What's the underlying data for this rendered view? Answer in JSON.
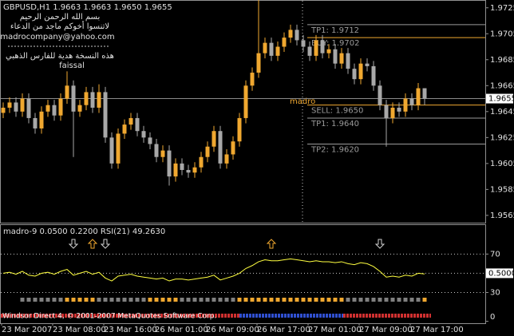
{
  "chart_data": {
    "type": "candlestick",
    "title": "GBPUSD,H1  1.9663 1.9663 1.9650 1.9655",
    "notes": [
      "بسم الله الرحمن الرحيم",
      "لاتنسوا أخوكم ماجد من الدعاء",
      "madrocompany@yahoo.com",
      "هذه النسخة هدية للفارس الذهبي",
      "faissal"
    ],
    "marker": "madro",
    "categories": [
      "23 Mar 2007",
      null,
      null,
      null,
      null,
      null,
      null,
      null,
      "23 Mar 08:00",
      null,
      null,
      null,
      null,
      null,
      null,
      null,
      "23 Mar 16:00",
      null,
      null,
      null,
      null,
      null,
      null,
      null,
      "26 Mar 01:00",
      null,
      null,
      null,
      null,
      null,
      null,
      null,
      "26 Mar 09:00",
      null,
      null,
      null,
      null,
      null,
      null,
      null,
      "26 Mar 17:00",
      null,
      null,
      null,
      null,
      null,
      null,
      null,
      "27 Mar 01:00",
      null,
      null,
      null,
      null,
      null,
      null,
      null,
      "27 Mar 09:00",
      null,
      null,
      null,
      null,
      null,
      null,
      null,
      "27 Mar 17:00",
      null,
      null
    ],
    "open": [
      1.9644,
      1.9648,
      1.9652,
      1.9645,
      1.9655,
      1.964,
      1.9632,
      1.9645,
      1.965,
      1.9642,
      1.9655,
      1.9665,
      1.9645,
      1.965,
      1.966,
      1.9648,
      1.966,
      1.9625,
      1.9605,
      1.9628,
      1.9635,
      1.964,
      1.963,
      1.9625,
      1.962,
      1.961,
      1.9615,
      1.9595,
      1.9605,
      1.96,
      1.9598,
      1.9602,
      1.961,
      1.9618,
      1.963,
      1.9605,
      1.9612,
      1.9622,
      1.964,
      1.9665,
      1.9675,
      1.969,
      1.9698,
      1.9688,
      1.9695,
      1.9702,
      1.9708,
      1.97,
      1.9695,
      1.9688,
      1.97,
      1.969,
      1.9693,
      1.9682,
      1.969,
      1.9678,
      1.967,
      1.9682,
      1.968,
      1.9665,
      1.965,
      1.964,
      1.9648,
      1.9645,
      1.9655,
      1.965,
      1.9663
    ],
    "high": [
      1.9652,
      1.9656,
      1.9656,
      1.9659,
      1.9659,
      1.9644,
      1.9649,
      1.9654,
      1.9654,
      1.9659,
      1.9676,
      1.9669,
      1.9654,
      1.9664,
      1.9664,
      1.9666,
      1.9664,
      1.9629,
      1.9632,
      1.9639,
      1.9644,
      1.9644,
      1.9634,
      1.9629,
      1.9624,
      1.9619,
      1.9619,
      1.9609,
      1.9609,
      1.9604,
      1.9606,
      1.9614,
      1.9622,
      1.9634,
      1.9634,
      1.9616,
      1.9626,
      1.9644,
      1.9669,
      1.9679,
      1.9735,
      1.9702,
      1.9702,
      1.9699,
      1.9706,
      1.9712,
      1.9712,
      1.9704,
      1.9699,
      1.9704,
      1.9704,
      1.9697,
      1.9697,
      1.9694,
      1.9694,
      1.9682,
      1.9686,
      1.9686,
      1.9684,
      1.9669,
      1.9654,
      1.9652,
      1.9652,
      1.9659,
      1.9659,
      1.9667,
      1.9663
    ],
    "low": [
      1.964,
      1.9644,
      1.9641,
      1.9641,
      1.9636,
      1.9628,
      1.9628,
      1.9641,
      1.9638,
      1.9638,
      1.9651,
      1.961,
      1.9641,
      1.9646,
      1.9644,
      1.9644,
      1.9621,
      1.9601,
      1.9601,
      1.9624,
      1.9631,
      1.9626,
      1.9621,
      1.9616,
      1.9606,
      1.9606,
      1.9588,
      1.9591,
      1.9596,
      1.9594,
      1.9594,
      1.9598,
      1.9606,
      1.9614,
      1.9601,
      1.9601,
      1.9608,
      1.9618,
      1.9636,
      1.9661,
      1.9671,
      1.9686,
      1.9684,
      1.9684,
      1.9691,
      1.9698,
      1.9696,
      1.9691,
      1.9684,
      1.9684,
      1.9686,
      1.9686,
      1.9678,
      1.9678,
      1.9674,
      1.9666,
      1.9666,
      1.9676,
      1.9661,
      1.9646,
      1.9618,
      1.9636,
      1.9641,
      1.9641,
      1.9646,
      1.9646,
      1.965
    ],
    "close": [
      1.9648,
      1.9652,
      1.9645,
      1.9655,
      1.964,
      1.9632,
      1.9645,
      1.965,
      1.9642,
      1.9655,
      1.9665,
      1.9645,
      1.965,
      1.966,
      1.9648,
      1.966,
      1.9625,
      1.9605,
      1.9628,
      1.9635,
      1.964,
      1.963,
      1.9625,
      1.962,
      1.961,
      1.9615,
      1.9595,
      1.9605,
      1.96,
      1.9598,
      1.9602,
      1.961,
      1.9618,
      1.963,
      1.9605,
      1.9612,
      1.9622,
      1.964,
      1.9665,
      1.9675,
      1.969,
      1.9698,
      1.9688,
      1.9695,
      1.9702,
      1.9708,
      1.97,
      1.9695,
      1.9688,
      1.97,
      1.969,
      1.9693,
      1.9682,
      1.969,
      1.9678,
      1.967,
      1.9682,
      1.968,
      1.9665,
      1.965,
      1.964,
      1.9648,
      1.9645,
      1.9655,
      1.965,
      1.9663,
      1.9655
    ],
    "up_color": "#f0a830",
    "down_color": "#a8a8a8",
    "ylim": [
      1.956,
      1.9731
    ],
    "yticks": [
      1.9725,
      1.9705,
      1.9685,
      1.9665,
      1.9645,
      1.9625,
      1.9605,
      1.9585,
      1.9565
    ],
    "bid": 1.9655,
    "levels": [
      {
        "label": "TP1: 1.9712",
        "value": 1.9712,
        "color": "#9a9a9a"
      },
      {
        "label": "BUY: 1.9702",
        "value": 1.9702,
        "color": "#f0a830"
      },
      {
        "label": "SELL: 1.9650",
        "value": 1.965,
        "color": "#f0a830"
      },
      {
        "label": "TP1: 1.9640",
        "value": 1.964,
        "color": "#9a9a9a"
      },
      {
        "label": "TP2: 1.9620",
        "value": 1.962,
        "color": "#9a9a9a"
      }
    ],
    "indicator": {
      "title": "madro-9 0.0500 0.2200  RSI(21) 49.2630",
      "color": "#ffff40",
      "values": [
        50,
        51,
        49,
        52,
        48,
        47,
        50,
        51,
        49,
        52,
        54,
        48,
        50,
        52,
        49,
        51,
        45,
        42,
        47,
        48,
        49,
        47,
        46,
        45,
        44,
        45,
        42,
        44,
        44,
        43,
        44,
        45,
        46,
        48,
        43,
        45,
        47,
        50,
        55,
        58,
        62,
        64,
        63,
        63,
        64,
        65,
        64,
        63,
        62,
        63,
        62,
        62,
        61,
        62,
        60,
        59,
        61,
        60,
        57,
        52,
        46,
        47,
        46,
        48,
        47,
        50,
        49.263
      ],
      "ylim": [
        -2,
        101
      ],
      "yticks": [
        70,
        50,
        30,
        0
      ],
      "level_box": {
        "value": 50,
        "label": "0.5000"
      },
      "signals": [
        {
          "bar": 11,
          "direction": "down"
        },
        {
          "bar": 14,
          "direction": "up"
        },
        {
          "bar": 16,
          "direction": "down"
        },
        {
          "bar": 42,
          "direction": "up"
        },
        {
          "bar": 59,
          "direction": "down"
        }
      ],
      "square_colors": [
        null,
        null,
        null,
        "#808080",
        "#808080",
        "#808080",
        "#808080",
        "#808080",
        "#808080",
        "#808080",
        "#f0a830",
        "#f0a830",
        "#f0a830",
        "#f0a830",
        "#f0a830",
        "#808080",
        "#808080",
        "#808080",
        "#808080",
        "#808080",
        "#808080",
        "#808080",
        "#808080",
        "#f0a830",
        "#f0a830",
        "#f0a830",
        "#f0a830",
        "#f0a830",
        "#808080",
        "#808080",
        "#808080",
        "#808080",
        "#808080",
        "#808080",
        "#808080",
        "#808080",
        "#808080",
        "#f0a830",
        "#f0a830",
        "#f0a830",
        "#f0a830",
        "#f0a830",
        "#f0a830",
        "#f0a830",
        "#f0a830",
        "#f0a830",
        "#f0a830",
        "#f0a830",
        "#f0a830",
        "#f0a830",
        "#f0a830",
        "#f0a830",
        "#f0a830",
        "#f0a830",
        "#808080",
        "#808080",
        "#808080",
        "#808080",
        "#808080",
        "#808080",
        "#808080",
        "#808080",
        "#808080",
        "#808080",
        "#808080",
        "#808080",
        "#f0a830"
      ]
    },
    "footer": "Windsor Direct 4, © 2001-2007 MetaQuotes Software Corp."
  }
}
